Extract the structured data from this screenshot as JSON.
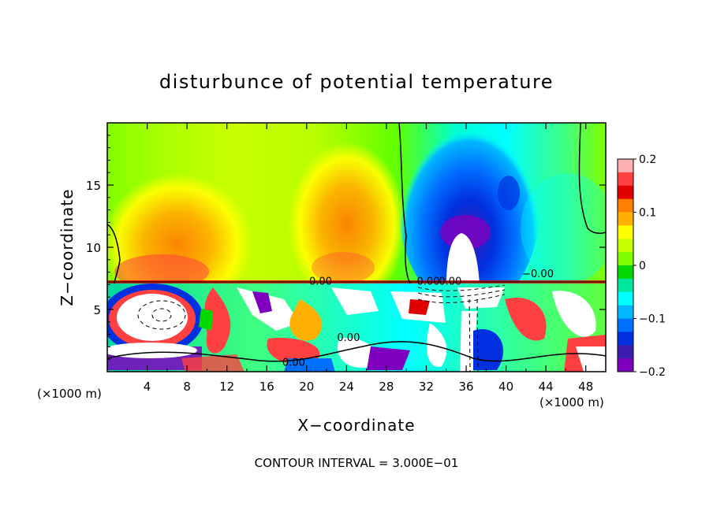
{
  "chart_data": {
    "type": "heatmap",
    "title": "disturbunce of potential temperature",
    "xlabel": "X−coordinate",
    "ylabel": "Z−coordinate",
    "x_unit_left": "(×1000 m)",
    "x_unit_right": "(×1000 m)",
    "xlim": [
      0,
      50
    ],
    "ylim": [
      0,
      20
    ],
    "x_ticks": [
      4,
      8,
      12,
      16,
      20,
      24,
      28,
      32,
      36,
      40,
      44,
      48
    ],
    "x_tick_labels": [
      "4",
      "8",
      "12",
      "16",
      "20",
      "24",
      "28",
      "32",
      "36",
      "40",
      "44",
      "48"
    ],
    "y_ticks": [
      5,
      10,
      15
    ],
    "y_tick_labels": [
      "5",
      "10",
      "15"
    ],
    "colorbar": {
      "range": [
        -0.2,
        0.2
      ],
      "ticks": [
        0.2,
        0.1,
        0,
        -0.1,
        -0.2
      ],
      "tick_labels": [
        "0.2",
        "0.1",
        "0",
        "−0.1",
        "−0.2"
      ],
      "colors": [
        "#ffb0b0",
        "#ff4040",
        "#e00000",
        "#ff7f00",
        "#ffb000",
        "#ffff00",
        "#c8ff00",
        "#80ff00",
        "#00d800",
        "#00e8a0",
        "#00ffff",
        "#00b8ff",
        "#0070ff",
        "#0030e0",
        "#3c1cb0",
        "#8000c0"
      ]
    },
    "contour_labels": [
      {
        "text": "0.00",
        "x": 21.4,
        "z": 7.3
      },
      {
        "text": "0.00",
        "x": 24.2,
        "z": 2.8
      },
      {
        "text": "0.00",
        "x": 18.7,
        "z": 0.8
      },
      {
        "text": "0.00",
        "x": 32.2,
        "z": 7.3
      },
      {
        "text": "0.00",
        "x": 34.4,
        "z": 7.3
      },
      {
        "text": "−0.00",
        "x": 43.2,
        "z": 7.9
      }
    ],
    "footer": "CONTOUR INTERVAL = 3.000E−01"
  }
}
